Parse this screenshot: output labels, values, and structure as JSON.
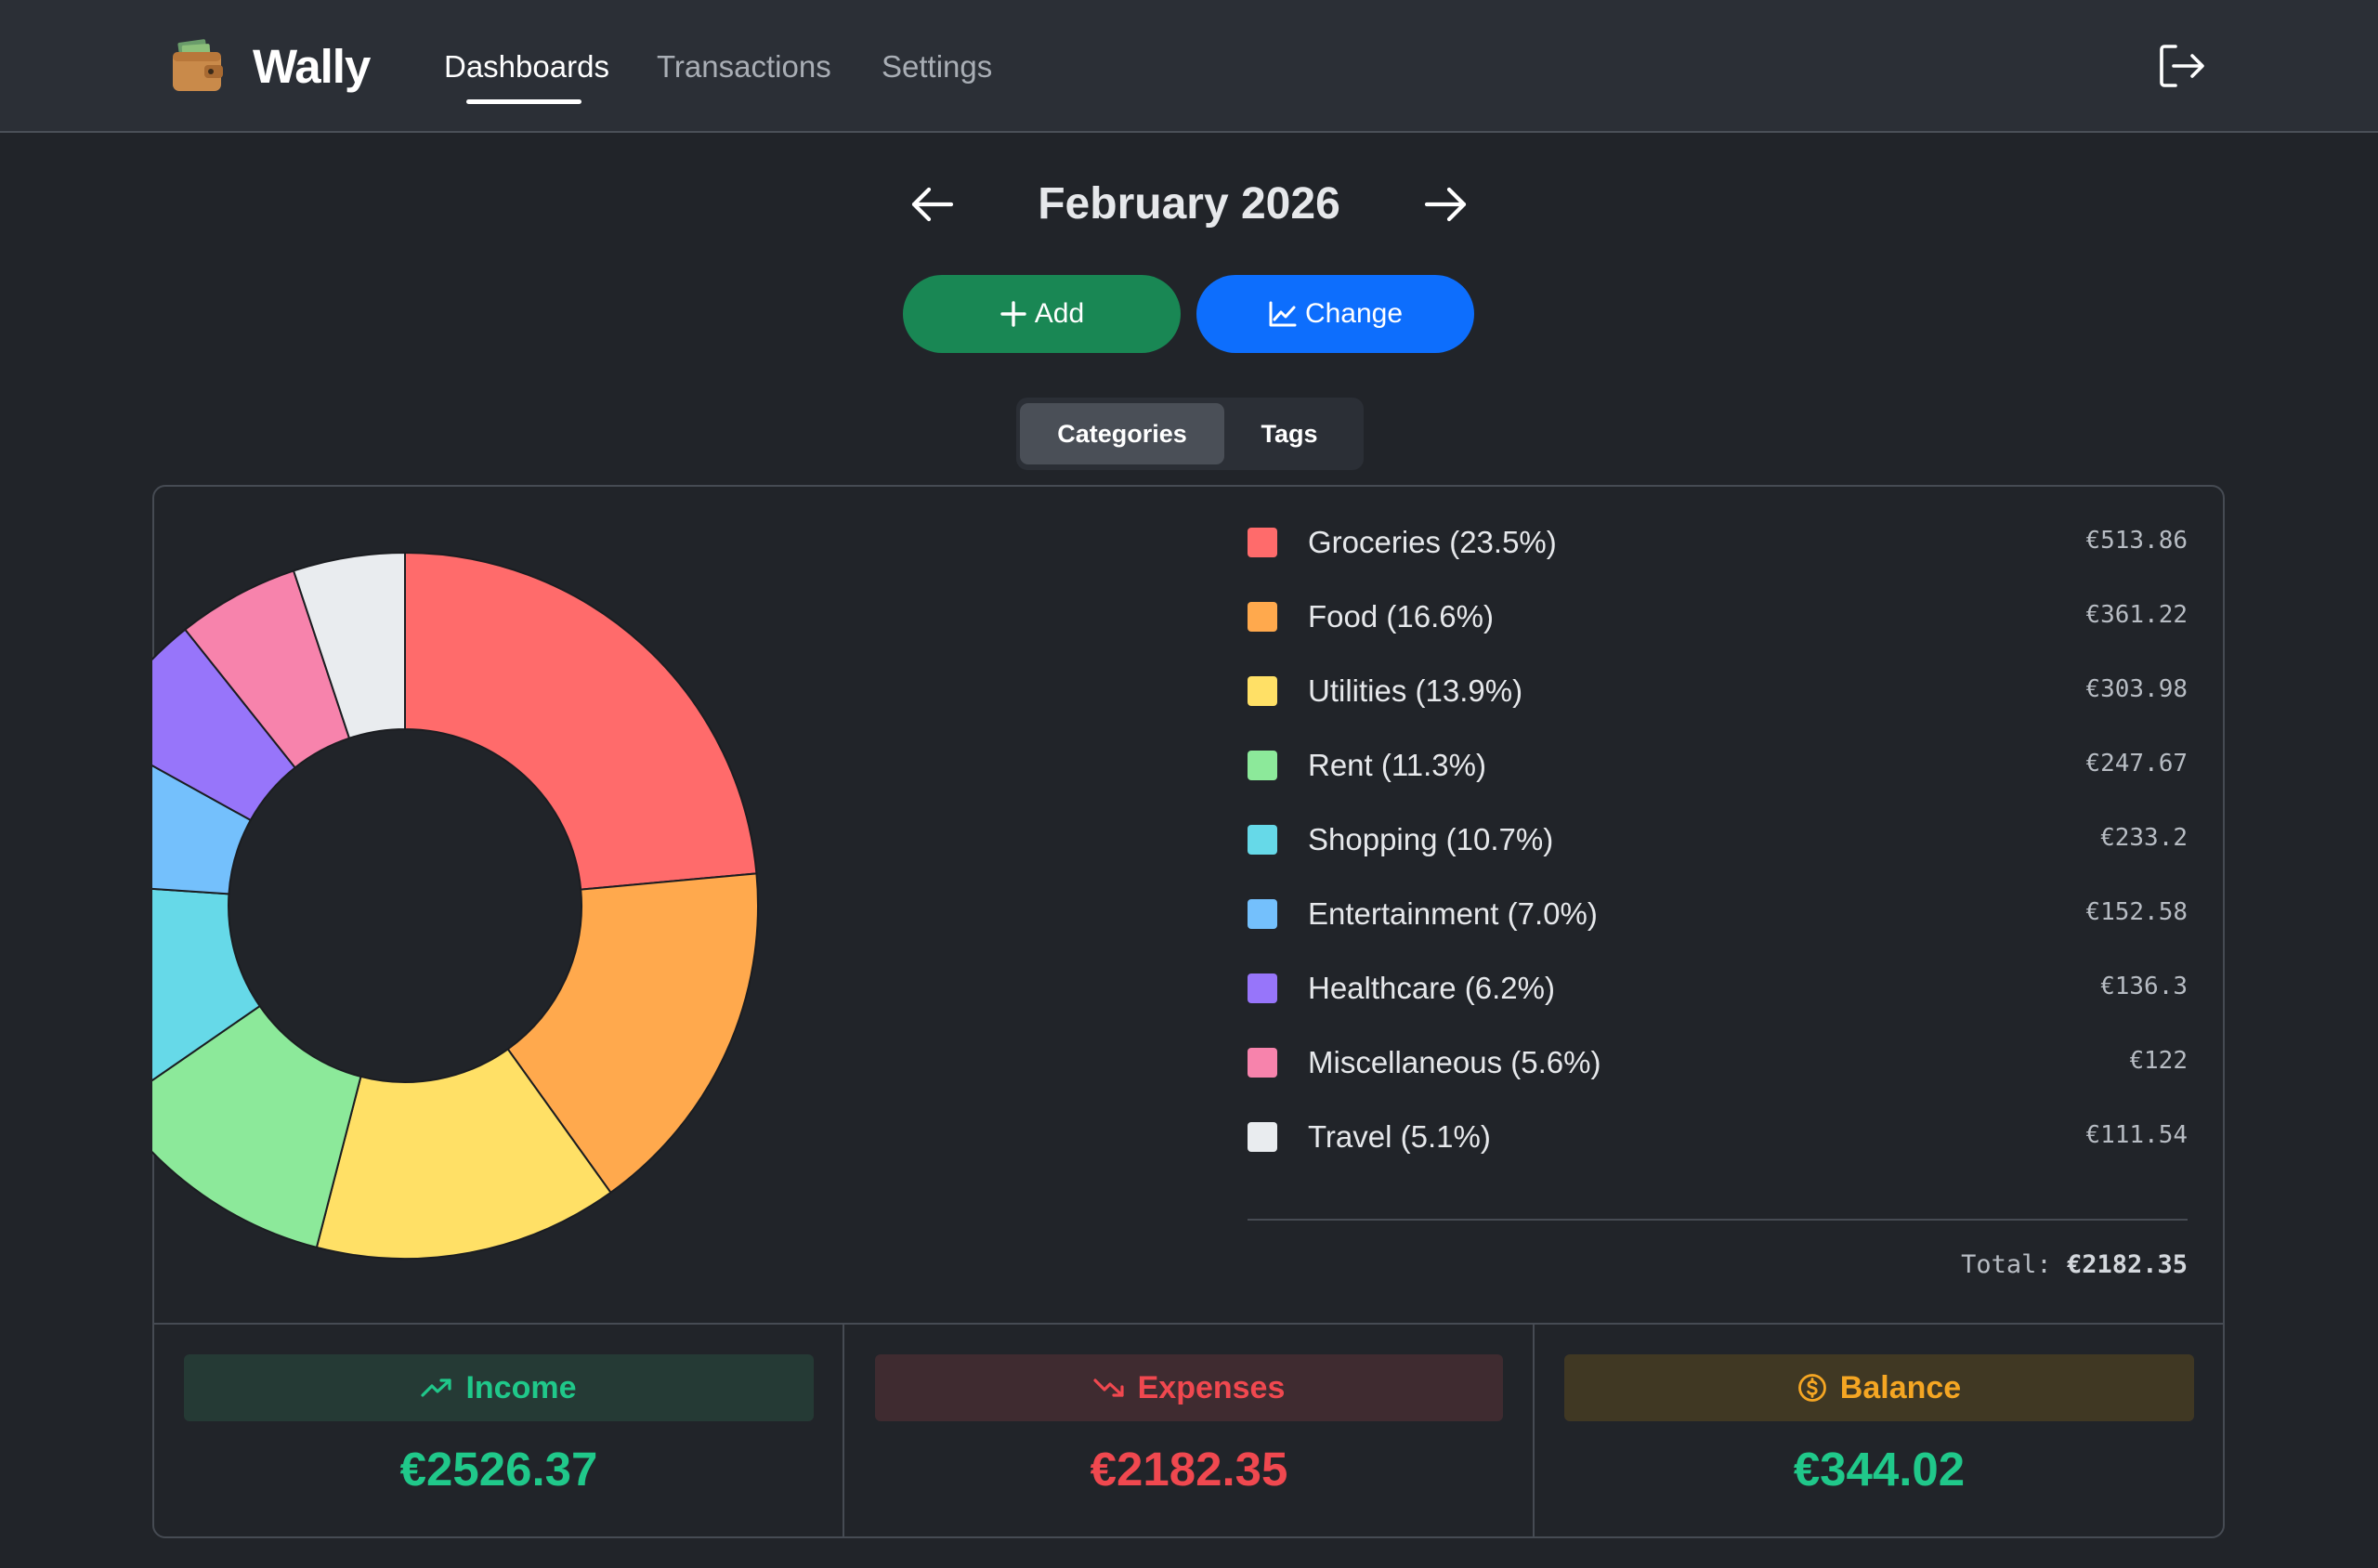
{
  "app": {
    "name": "Wally",
    "logo_icon": "wallet-icon"
  },
  "nav": {
    "items": [
      {
        "label": "Dashboards",
        "active": true
      },
      {
        "label": "Transactions",
        "active": false
      },
      {
        "label": "Settings",
        "active": false
      }
    ],
    "logout_icon": "logout-icon"
  },
  "period": {
    "title": "February 2026",
    "prev_icon": "arrow-left-icon",
    "next_icon": "arrow-right-icon"
  },
  "actions": {
    "add_label": "Add",
    "add_icon": "plus-icon",
    "change_label": "Change",
    "change_icon": "line-chart-icon"
  },
  "view_toggle": {
    "options": [
      "Categories",
      "Tags"
    ],
    "selected": "Categories"
  },
  "chart_data": {
    "type": "pie",
    "donut": true,
    "categories": [
      "Groceries",
      "Food",
      "Utilities",
      "Rent",
      "Shopping",
      "Entertainment",
      "Healthcare",
      "Miscellaneous",
      "Travel"
    ],
    "values": [
      513.86,
      361.22,
      303.98,
      247.67,
      233.2,
      152.58,
      136.3,
      122,
      111.54
    ],
    "colors": [
      "#ff6b6b",
      "#ffa94d",
      "#ffe066",
      "#8ce99a",
      "#66d9e8",
      "#74c0fc",
      "#9775fa",
      "#f783ac",
      "#e9ecef"
    ],
    "legend_placement": "right"
  },
  "legend": [
    {
      "label": "Groceries (23.5%)",
      "amount": "€513.86",
      "color": "#ff6b6b"
    },
    {
      "label": "Food (16.6%)",
      "amount": "€361.22",
      "color": "#ffa94d"
    },
    {
      "label": "Utilities (13.9%)",
      "amount": "€303.98",
      "color": "#ffe066"
    },
    {
      "label": "Rent (11.3%)",
      "amount": "€247.67",
      "color": "#8ce99a"
    },
    {
      "label": "Shopping (10.7%)",
      "amount": "€233.2",
      "color": "#66d9e8"
    },
    {
      "label": "Entertainment (7.0%)",
      "amount": "€152.58",
      "color": "#74c0fc"
    },
    {
      "label": "Healthcare (6.2%)",
      "amount": "€136.3",
      "color": "#9775fa"
    },
    {
      "label": "Miscellaneous (5.6%)",
      "amount": "€122",
      "color": "#f783ac"
    },
    {
      "label": "Travel (5.1%)",
      "amount": "€111.54",
      "color": "#e9ecef"
    }
  ],
  "total": {
    "label": "Total:",
    "value": "€2182.35"
  },
  "summary": {
    "income": {
      "label": "Income",
      "value": "€2526.37",
      "icon": "trending-up-icon",
      "color": "#20c88a"
    },
    "expenses": {
      "label": "Expenses",
      "value": "€2182.35",
      "icon": "trending-down-icon",
      "color": "#f0484f"
    },
    "balance": {
      "label": "Balance",
      "value": "€344.02",
      "icon": "dollar-coin-icon",
      "color": "#f5a623"
    }
  }
}
